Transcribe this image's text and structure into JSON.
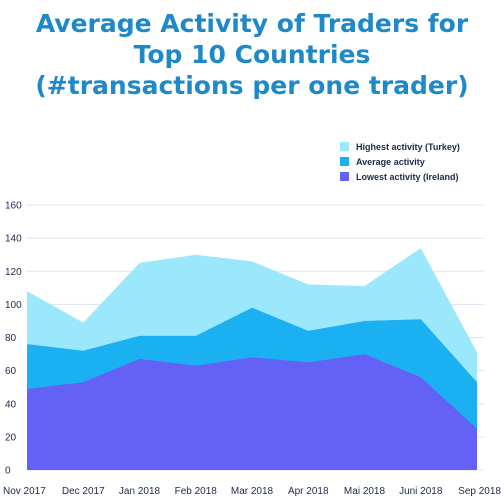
{
  "chart_data": {
    "type": "area",
    "title_lines": [
      "Average Activity of Traders for",
      "Top 10 Countries",
      "(#transactions per one trader)"
    ],
    "xlabel": "",
    "ylabel": "",
    "categories": [
      "Nov 2017",
      "Dec 2017",
      "Jan 2018",
      "Feb 2018",
      "Mar 2018",
      "Apr 2018",
      "Mai 2018",
      "Juni 2018",
      "Sep 2018"
    ],
    "ylim": [
      0,
      160
    ],
    "yticks": [
      0,
      20,
      40,
      60,
      80,
      100,
      120,
      140,
      160
    ],
    "grid": true,
    "legend_position": "top-right",
    "series": [
      {
        "name": "Highest activity (Turkey)",
        "color": "#9be7fb",
        "values": [
          108,
          89,
          125,
          130,
          126,
          112,
          111,
          134,
          71
        ]
      },
      {
        "name": "Average activity",
        "color": "#1bb0f2",
        "values": [
          76,
          72,
          81,
          81,
          98,
          84,
          90,
          91,
          53
        ]
      },
      {
        "name": "Lowest activity (Ireland)",
        "color": "#6462f6",
        "values": [
          49,
          53,
          67,
          63,
          68,
          65,
          70,
          56,
          25
        ]
      }
    ]
  }
}
